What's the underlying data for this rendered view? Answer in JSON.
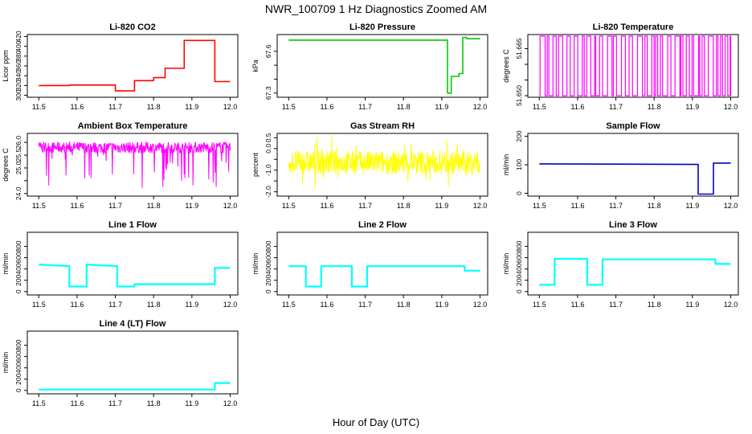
{
  "figure": {
    "title": "NWR_100709  1 Hz Diagnostics Zoomed AM",
    "xlabel": "Hour of Day (UTC)"
  },
  "chart_data": [
    {
      "type": "line",
      "title": "Li-820 CO2",
      "ylabel": "Licor ppm",
      "color": "#ff0000",
      "xlim": [
        11.47,
        12.02
      ],
      "ylim": [
        296,
        424
      ],
      "yticks": [
        300,
        320,
        340,
        360,
        380,
        400,
        420
      ],
      "xticks": [
        11.5,
        11.6,
        11.7,
        11.8,
        11.9,
        12.0
      ],
      "xticklabels": [
        "11.5",
        "11.6",
        "11.7",
        "11.8",
        "11.9",
        "12.0"
      ],
      "x": [
        11.5,
        11.58,
        11.58,
        11.7,
        11.7,
        11.75,
        11.75,
        11.8,
        11.8,
        11.83,
        11.83,
        11.88,
        11.88,
        11.96,
        11.96,
        12.0
      ],
      "y": [
        320,
        320,
        321,
        321,
        309,
        309,
        330,
        330,
        336,
        336,
        355,
        355,
        412,
        412,
        328,
        328
      ]
    },
    {
      "type": "line",
      "title": "Li-820 Pressure",
      "ylabel": "kPa",
      "color": "#00cc00",
      "xlim": [
        11.47,
        12.02
      ],
      "ylim": [
        67.27,
        67.72
      ],
      "yticks": [
        67.3,
        67.4,
        67.5,
        67.6
      ],
      "yticklabels": [
        "67.3",
        "",
        "",
        "67.6"
      ],
      "xticks": [
        11.5,
        11.6,
        11.7,
        11.8,
        11.9,
        12.0
      ],
      "xticklabels": [
        "11.5",
        "11.6",
        "11.7",
        "11.8",
        "11.9",
        "12.0"
      ],
      "x": [
        11.5,
        11.915,
        11.915,
        11.925,
        11.925,
        11.945,
        11.945,
        11.955,
        11.955,
        11.965,
        11.965,
        12.0
      ],
      "y": [
        67.68,
        67.68,
        67.3,
        67.3,
        67.42,
        67.42,
        67.44,
        67.44,
        67.7,
        67.7,
        67.69,
        67.69
      ]
    },
    {
      "type": "line",
      "title": "Li-820 Temperature",
      "ylabel": "degrees C",
      "color": "#ff00ff",
      "xlim": [
        11.47,
        12.02
      ],
      "ylim": [
        51.6495,
        51.6695
      ],
      "yticks": [
        51.65,
        51.655,
        51.66,
        51.665
      ],
      "yticklabels": [
        "51.650",
        "",
        "",
        "51.665"
      ],
      "xticks": [
        11.5,
        11.6,
        11.7,
        11.8,
        11.9,
        12.0
      ],
      "xticklabels": [
        "11.5",
        "11.6",
        "11.7",
        "11.8",
        "11.9",
        "12.0"
      ],
      "x": [
        11.5,
        12.0
      ],
      "y": [
        51.65,
        51.669
      ],
      "note_values": "alternates between 51.65 and 51.669 throughout"
    },
    {
      "type": "line",
      "title": "Ambient Box Temperature",
      "ylabel": "degrees C",
      "color": "#ff00ff",
      "xlim": [
        11.47,
        12.02
      ],
      "ylim": [
        23.9,
        26.35
      ],
      "yticks": [
        24.0,
        24.5,
        25.0,
        25.5,
        26.0
      ],
      "yticklabels": [
        "24.0",
        "",
        "25.0",
        "25.5",
        "26.0"
      ],
      "xticks": [
        11.5,
        11.6,
        11.7,
        11.8,
        11.9,
        12.0
      ],
      "xticklabels": [
        "11.5",
        "11.6",
        "11.7",
        "11.8",
        "11.9",
        "12.0"
      ],
      "x": [
        11.5,
        12.0
      ],
      "y": [
        25.8,
        25.8
      ]
    },
    {
      "type": "line",
      "title": "Gas Stream RH",
      "ylabel": "percent",
      "color": "#ffff00",
      "xlim": [
        11.47,
        12.02
      ],
      "ylim": [
        -2.2,
        0.7
      ],
      "yticks": [
        -2.0,
        -1.5,
        -1.0,
        -0.5,
        0.0,
        0.5
      ],
      "yticklabels": [
        "-2.0",
        "",
        "-1.0",
        "",
        "0.0",
        "0.5"
      ],
      "xticks": [
        11.5,
        11.6,
        11.7,
        11.8,
        11.9,
        12.0
      ],
      "xticklabels": [
        "11.5",
        "11.6",
        "11.7",
        "11.8",
        "11.9",
        "12.0"
      ],
      "x": [
        11.5,
        12.0
      ],
      "y": [
        -0.65,
        -0.65
      ]
    },
    {
      "type": "line",
      "title": "Sample Flow",
      "ylabel": "ml/min",
      "color": "#0000cc",
      "xlim": [
        11.47,
        12.02
      ],
      "ylim": [
        -10,
        210
      ],
      "yticks": [
        0,
        100,
        200
      ],
      "xticks": [
        11.5,
        11.6,
        11.7,
        11.8,
        11.9,
        12.0
      ],
      "xticklabels": [
        "11.5",
        "11.6",
        "11.7",
        "11.8",
        "11.9",
        "12.0"
      ],
      "x": [
        11.5,
        11.915,
        11.915,
        11.955,
        11.955,
        12.0
      ],
      "y": [
        103,
        101,
        -3,
        -3,
        106,
        106
      ]
    },
    {
      "type": "line",
      "title": "Line 1 Flow",
      "ylabel": "ml/min",
      "color": "#00ffff",
      "xlim": [
        11.47,
        12.02
      ],
      "ylim": [
        -60,
        1050
      ],
      "yticks": [
        0,
        200,
        400,
        600,
        800
      ],
      "xticks": [
        11.5,
        11.6,
        11.7,
        11.8,
        11.9,
        12.0
      ],
      "xticklabels": [
        "11.5",
        "11.6",
        "11.7",
        "11.8",
        "11.9",
        "12.0"
      ],
      "x": [
        11.5,
        11.58,
        11.58,
        11.625,
        11.625,
        11.705,
        11.705,
        11.75,
        11.75,
        11.96,
        11.96,
        12.0
      ],
      "y": [
        480,
        450,
        90,
        90,
        480,
        450,
        90,
        90,
        130,
        130,
        420,
        420
      ]
    },
    {
      "type": "line",
      "title": "Line 2 Flow",
      "ylabel": "ml/min",
      "color": "#00ffff",
      "xlim": [
        11.47,
        12.02
      ],
      "ylim": [
        -60,
        1050
      ],
      "yticks": [
        0,
        200,
        400,
        600,
        800
      ],
      "xticks": [
        11.5,
        11.6,
        11.7,
        11.8,
        11.9,
        12.0
      ],
      "xticklabels": [
        "11.5",
        "11.6",
        "11.7",
        "11.8",
        "11.9",
        "12.0"
      ],
      "x": [
        11.5,
        11.545,
        11.545,
        11.585,
        11.585,
        11.665,
        11.665,
        11.705,
        11.705,
        11.96,
        11.96,
        12.0
      ],
      "y": [
        450,
        450,
        90,
        90,
        450,
        450,
        90,
        90,
        450,
        450,
        370,
        370
      ]
    },
    {
      "type": "line",
      "title": "Line 3 Flow",
      "ylabel": "ml/min",
      "color": "#00ffff",
      "xlim": [
        11.47,
        12.02
      ],
      "ylim": [
        -60,
        1050
      ],
      "yticks": [
        0,
        200,
        400,
        600,
        800
      ],
      "xticks": [
        11.5,
        11.6,
        11.7,
        11.8,
        11.9,
        12.0
      ],
      "xticklabels": [
        "11.5",
        "11.6",
        "11.7",
        "11.8",
        "11.9",
        "12.0"
      ],
      "x": [
        11.5,
        11.54,
        11.54,
        11.625,
        11.625,
        11.665,
        11.665,
        11.96,
        11.96,
        12.0
      ],
      "y": [
        120,
        120,
        580,
        580,
        120,
        120,
        570,
        570,
        490,
        490
      ]
    },
    {
      "type": "line",
      "title": "Line 4 (LT) Flow",
      "ylabel": "ml/min",
      "color": "#00ffff",
      "xlim": [
        11.47,
        12.02
      ],
      "ylim": [
        -60,
        1050
      ],
      "yticks": [
        0,
        200,
        400,
        600,
        800
      ],
      "xticks": [
        11.5,
        11.6,
        11.7,
        11.8,
        11.9,
        12.0
      ],
      "xticklabels": [
        "11.5",
        "11.6",
        "11.7",
        "11.8",
        "11.9",
        "12.0"
      ],
      "x": [
        11.5,
        11.96,
        11.96,
        12.0
      ],
      "y": [
        15,
        15,
        130,
        130
      ]
    }
  ]
}
